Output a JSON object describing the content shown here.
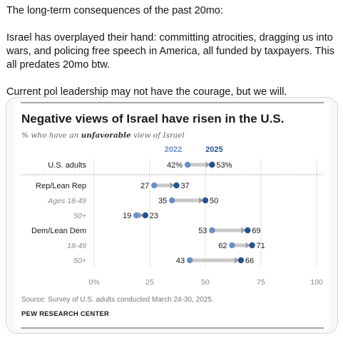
{
  "post": {
    "paragraph_1": "The long-term consequences of the past 20mo:",
    "paragraph_2": "Israel has overplayed their hand: committing atrocities, dragging us into wars, and policing free speech in America, all funded by taxpayers. This all predates 20mo btw.",
    "paragraph_3": "Current pol leadership may not have the courage, but we will."
  },
  "colors": {
    "dot_2022": "#6a8fc8",
    "dot_2025": "#25528f",
    "connector": "#c8c8c8",
    "year_2022": "#6a8fc8",
    "year_2025": "#25528f"
  },
  "chart_data": {
    "type": "dot",
    "title": "Negative views of Israel have risen in the U.S.",
    "subtitle_prefix": "% who have an ",
    "subtitle_emphasis": "unfavorable",
    "subtitle_suffix": " view of Israel",
    "series": [
      {
        "name": "2022"
      },
      {
        "name": "2025"
      }
    ],
    "xlim": [
      0,
      100
    ],
    "x_ticks": [
      {
        "value": 0,
        "label": "0%"
      },
      {
        "value": 25,
        "label": "25"
      },
      {
        "value": 50,
        "label": "50"
      },
      {
        "value": 75,
        "label": "75"
      },
      {
        "value": 100,
        "label": "100"
      }
    ],
    "rows": [
      {
        "label": "U.S. adults",
        "style": "bold",
        "v2022": 42,
        "v2025": 53,
        "label_2022": "42%",
        "label_2025": "53%"
      },
      {
        "label": "Rep/Lean Rep",
        "style": "group",
        "v2022": 27,
        "v2025": 37,
        "label_2022": "27",
        "label_2025": "37"
      },
      {
        "label": "Ages 18-49",
        "style": "sub",
        "v2022": 35,
        "v2025": 50,
        "label_2022": "35",
        "label_2025": "50"
      },
      {
        "label": "50+",
        "style": "sub",
        "v2022": 19,
        "v2025": 23,
        "label_2022": "19",
        "label_2025": "23"
      },
      {
        "label": "Dem/Lean Dem",
        "style": "group",
        "v2022": 53,
        "v2025": 69,
        "label_2022": "53",
        "label_2025": "69"
      },
      {
        "label": "18-49",
        "style": "sub",
        "v2022": 62,
        "v2025": 71,
        "label_2022": "62",
        "label_2025": "71"
      },
      {
        "label": "50+",
        "style": "sub",
        "v2022": 43,
        "v2025": 66,
        "label_2022": "43",
        "label_2025": "66"
      }
    ],
    "grid": true,
    "source": "Source: Survey of U.S. adults conducted March 24-30, 2025.",
    "organization": "PEW RESEARCH CENTER"
  }
}
